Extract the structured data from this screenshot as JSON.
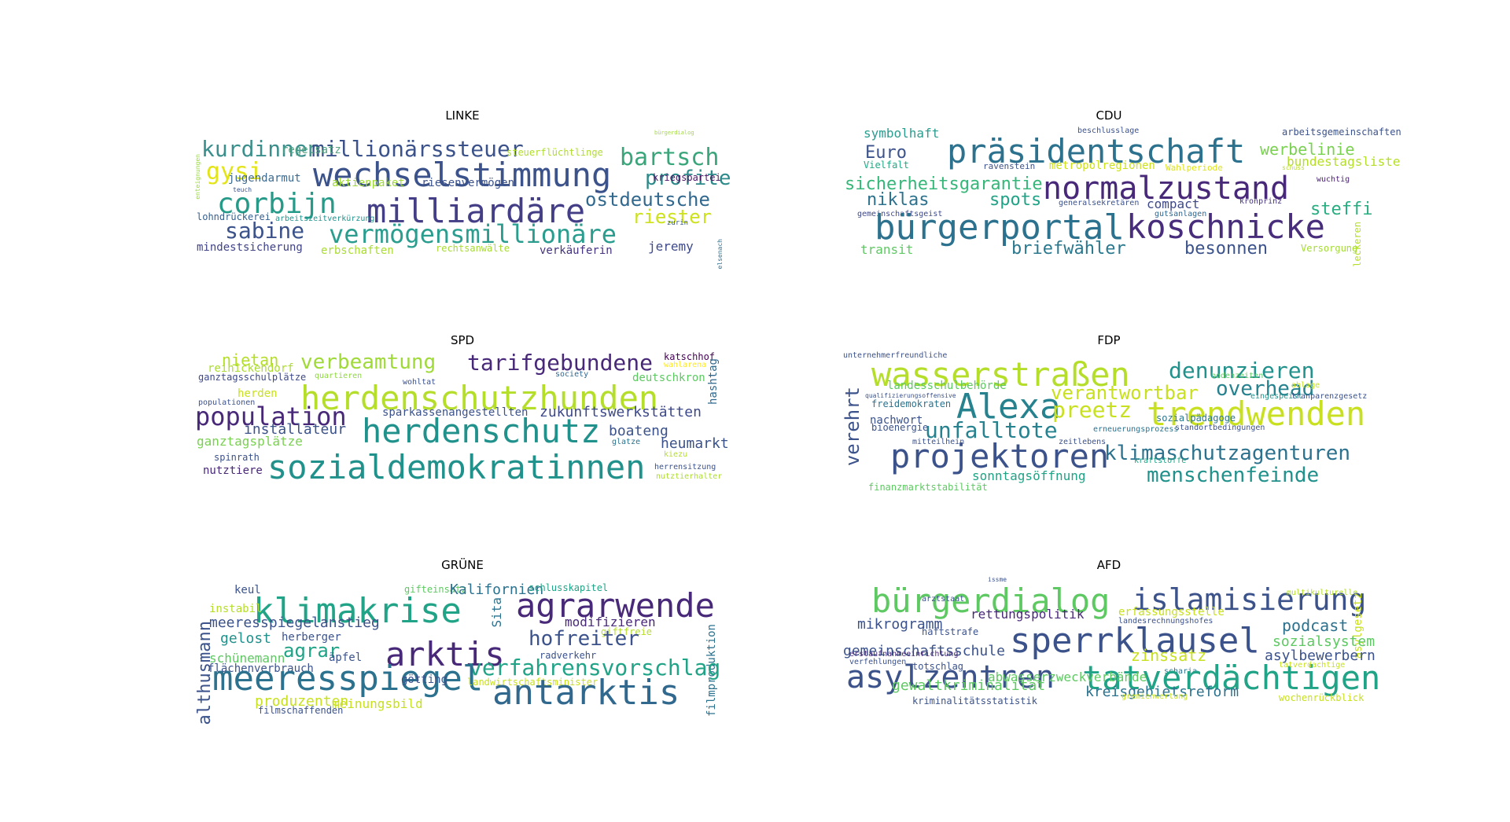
{
  "panels": [
    {
      "title": "LINKE",
      "words": [
        {
          "t": "kurdinnen",
          "c": "#3a8f8c"
        },
        {
          "t": "millionärssteuer",
          "c": "#3b528b"
        },
        {
          "t": "wechselstimmung",
          "c": "#3b528b"
        },
        {
          "t": "gysi",
          "c": "#e3e418"
        },
        {
          "t": "bartsch",
          "c": "#3aa57a"
        },
        {
          "t": "profite",
          "c": "#2c8b8a"
        },
        {
          "t": "corbijn",
          "c": "#269a88"
        },
        {
          "t": "milliardäre",
          "c": "#433e85"
        },
        {
          "t": "ostdeutsche",
          "c": "#31688e"
        },
        {
          "t": "riester",
          "c": "#cde11d"
        },
        {
          "t": "sabine",
          "c": "#3b528b"
        },
        {
          "t": "vermögensmillionäre",
          "c": "#2a9d8f"
        },
        {
          "t": "jeremy",
          "c": "#3e4a89"
        },
        {
          "t": "regelsatz",
          "c": "#50a383"
        },
        {
          "t": "steuerflüchtlinge",
          "c": "#b0dd2f"
        },
        {
          "t": "jugendarmut",
          "c": "#3d6a8e"
        },
        {
          "t": "aktienpaket",
          "c": "#9fd938"
        },
        {
          "t": "riesenvermögen",
          "c": "#3b528b"
        },
        {
          "t": "kriegspartei",
          "c": "#471365"
        },
        {
          "t": "lohndrückerei",
          "c": "#355f8d"
        },
        {
          "t": "arbeitszeitverkürzung",
          "c": "#21918c"
        },
        {
          "t": "mindestsicherung",
          "c": "#404387"
        },
        {
          "t": "erbschaften",
          "c": "#aadc32"
        },
        {
          "t": "rechtsanwälte",
          "c": "#a8db34"
        },
        {
          "t": "verkäuferin",
          "c": "#46337e"
        },
        {
          "t": "enteignungen",
          "c": "#9bd93c"
        },
        {
          "t": "bürgerdialog",
          "c": "#a0da39"
        },
        {
          "t": "teuch",
          "c": "#3b528b"
        },
        {
          "t": "zurin",
          "c": "#38598c"
        },
        {
          "t": "elsenach",
          "c": "#2e6f8e"
        }
      ]
    },
    {
      "title": "CDU",
      "words": [
        {
          "t": "symbolhaft",
          "c": "#2a9d8f"
        },
        {
          "t": "beschlusslage",
          "c": "#3b528b"
        },
        {
          "t": "arbeitsgemeinschaften",
          "c": "#3b528b"
        },
        {
          "t": "präsidentschaft",
          "c": "#2c728e"
        },
        {
          "t": "werbelinie",
          "c": "#7ad151"
        },
        {
          "t": "Euro",
          "c": "#3b528b"
        },
        {
          "t": "bundestagsliste",
          "c": "#b5de2b"
        },
        {
          "t": "Vielfalt",
          "c": "#22a884"
        },
        {
          "t": "ravenstein",
          "c": "#3b528b"
        },
        {
          "t": "metropolregionen",
          "c": "#cde11d"
        },
        {
          "t": "Wahlperiode",
          "c": "#dde318"
        },
        {
          "t": "schuss",
          "c": "#b8de29"
        },
        {
          "t": "sicherheitsgarantie",
          "c": "#35b779"
        },
        {
          "t": "normalzustand",
          "c": "#482878"
        },
        {
          "t": "wuchtig",
          "c": "#481f70"
        },
        {
          "t": "niklas",
          "c": "#2c728e"
        },
        {
          "t": "spots",
          "c": "#20a386"
        },
        {
          "t": "generalsekretären",
          "c": "#3b528b"
        },
        {
          "t": "compact",
          "c": "#3e4989"
        },
        {
          "t": "kronprinz",
          "c": "#46327e"
        },
        {
          "t": "steffi",
          "c": "#26ad81"
        },
        {
          "t": "gemeinschaftsgeist",
          "c": "#3e4989"
        },
        {
          "t": "gutsanlagen",
          "c": "#31688e"
        },
        {
          "t": "bürgerportal",
          "c": "#2c728e"
        },
        {
          "t": "koschnicke",
          "c": "#472d7b"
        },
        {
          "t": "transit",
          "c": "#5ec962"
        },
        {
          "t": "briefwähler",
          "c": "#2a788e"
        },
        {
          "t": "besonnen",
          "c": "#3b528b"
        },
        {
          "t": "Versorgung",
          "c": "#a5db36"
        },
        {
          "t": "leckeren",
          "c": "#b5de2b"
        }
      ]
    },
    {
      "title": "SPD",
      "words": [
        {
          "t": "nietan",
          "c": "#b5de2b"
        },
        {
          "t": "verbeamtung",
          "c": "#a0da39"
        },
        {
          "t": "tarifgebundene",
          "c": "#482878"
        },
        {
          "t": "katschhof",
          "c": "#440154"
        },
        {
          "t": "reinickendorf",
          "c": "#addc30"
        },
        {
          "t": "ganztagsschulplätze",
          "c": "#3e4989"
        },
        {
          "t": "quartieren",
          "c": "#90d743"
        },
        {
          "t": "society",
          "c": "#31688e"
        },
        {
          "t": "wahlarena",
          "c": "#fde725"
        },
        {
          "t": "deutschkron",
          "c": "#5ec962"
        },
        {
          "t": "hashtag",
          "c": "#31688e"
        },
        {
          "t": "wohltat",
          "c": "#3b528b"
        },
        {
          "t": "herden",
          "c": "#c8e020"
        },
        {
          "t": "herdenschutzhunden",
          "c": "#b5de2b"
        },
        {
          "t": "populationen",
          "c": "#3b528b"
        },
        {
          "t": "population",
          "c": "#482878"
        },
        {
          "t": "sparkassenangestellten",
          "c": "#3b528b"
        },
        {
          "t": "zukunftswerkstätten",
          "c": "#3e4989"
        },
        {
          "t": "installateur",
          "c": "#3b528b"
        },
        {
          "t": "herdenschutz",
          "c": "#21918c"
        },
        {
          "t": "boateng",
          "c": "#3b528b"
        },
        {
          "t": "ganztagsplätze",
          "c": "#7ad151"
        },
        {
          "t": "glatze",
          "c": "#2c728e"
        },
        {
          "t": "heumarkt",
          "c": "#3b528b"
        },
        {
          "t": "spinrath",
          "c": "#3b528b"
        },
        {
          "t": "sozialdemokratinnen",
          "c": "#21918c"
        },
        {
          "t": "kiezu",
          "c": "#b5de2b"
        },
        {
          "t": "herrensitzung",
          "c": "#3b528b"
        },
        {
          "t": "nutztiere",
          "c": "#482878"
        },
        {
          "t": "nutztierhalter",
          "c": "#addc30"
        }
      ]
    },
    {
      "title": "FDP",
      "words": [
        {
          "t": "unternehmerfreundliche",
          "c": "#3b528b"
        },
        {
          "t": "wasserstraßen",
          "c": "#b5de2b"
        },
        {
          "t": "denunzieren",
          "c": "#21918c"
        },
        {
          "t": "bodenzeiten",
          "c": "#5ec962"
        },
        {
          "t": "landesschulbehörde",
          "c": "#5ec962"
        },
        {
          "t": "verantwortbar",
          "c": "#c8e020"
        },
        {
          "t": "overhead",
          "c": "#26828e"
        },
        {
          "t": "ablage",
          "c": "#c8e020"
        },
        {
          "t": "qualifizierungsoffensive",
          "c": "#3b528b"
        },
        {
          "t": "freidemokraten",
          "c": "#2c728e"
        },
        {
          "t": "Alexa",
          "c": "#26828e"
        },
        {
          "t": "preetz",
          "c": "#c8e020"
        },
        {
          "t": "eingespeist",
          "c": "#21918c"
        },
        {
          "t": "tranparenzgesetz",
          "c": "#3b528b"
        },
        {
          "t": "verehrt",
          "c": "#3b528b"
        },
        {
          "t": "trendwenden",
          "c": "#c8e020"
        },
        {
          "t": "sozialpädagoge",
          "c": "#2a788e"
        },
        {
          "t": "nachwort",
          "c": "#3b528b"
        },
        {
          "t": "bioenergie",
          "c": "#3b528b"
        },
        {
          "t": "unfalltote",
          "c": "#26828e"
        },
        {
          "t": "erneuerungsprozess",
          "c": "#2c728e"
        },
        {
          "t": "standortbedingungen",
          "c": "#3b528b"
        },
        {
          "t": "mitteilhein",
          "c": "#3b528b"
        },
        {
          "t": "zeitlebens",
          "c": "#3b528b"
        },
        {
          "t": "projektoren",
          "c": "#3b528b"
        },
        {
          "t": "klimaschutzagenturen",
          "c": "#2c728e"
        },
        {
          "t": "kraftstoffe",
          "c": "#20a386"
        },
        {
          "t": "sonntagsöffnung",
          "c": "#20a386"
        },
        {
          "t": "menschenfeinde",
          "c": "#21918c"
        },
        {
          "t": "finanzmarktstabilität",
          "c": "#5ec962"
        }
      ]
    },
    {
      "title": "GRÜNE",
      "words": [
        {
          "t": "keul",
          "c": "#3b528b"
        },
        {
          "t": "gifteinsatz",
          "c": "#5ec962"
        },
        {
          "t": "Kalifornien",
          "c": "#2c728e"
        },
        {
          "t": "schlusskapitel",
          "c": "#20a386"
        },
        {
          "t": "klimakrise",
          "c": "#20a386"
        },
        {
          "t": "Sita",
          "c": "#2c728e"
        },
        {
          "t": "agrarwende",
          "c": "#482878"
        },
        {
          "t": "instabil",
          "c": "#b5de2b"
        },
        {
          "t": "meeresspiegelanstieg",
          "c": "#3b528b"
        },
        {
          "t": "modifizieren",
          "c": "#482878"
        },
        {
          "t": "giftfreie",
          "c": "#b5de2b"
        },
        {
          "t": "gelost",
          "c": "#21918c"
        },
        {
          "t": "herberger",
          "c": "#3b528b"
        },
        {
          "t": "hofreiter",
          "c": "#3b528b"
        },
        {
          "t": "filmproduktion",
          "c": "#2c728e"
        },
        {
          "t": "agrar",
          "c": "#20a386"
        },
        {
          "t": "arktis",
          "c": "#482878"
        },
        {
          "t": "schünemann",
          "c": "#5ec962"
        },
        {
          "t": "äpfel",
          "c": "#3b528b"
        },
        {
          "t": "radverkehr",
          "c": "#3b528b"
        },
        {
          "t": "althusmann",
          "c": "#3b528b"
        },
        {
          "t": "flächenverbrauch",
          "c": "#3b528b"
        },
        {
          "t": "verfahrensvorschlag",
          "c": "#20a386"
        },
        {
          "t": "meeresspiegel",
          "c": "#2c728e"
        },
        {
          "t": "landwirtschaftsminister",
          "c": "#c8e020"
        },
        {
          "t": "antarktis",
          "c": "#31688e"
        },
        {
          "t": "produzenten",
          "c": "#c8e020"
        },
        {
          "t": "meinungsbild",
          "c": "#c8e020"
        },
        {
          "t": "götting",
          "c": "#3b528b"
        },
        {
          "t": "filmschaffenden",
          "c": "#3b528b"
        }
      ]
    },
    {
      "title": "AFD",
      "words": [
        {
          "t": "issme",
          "c": "#3b528b"
        },
        {
          "t": "bürgerdialog",
          "c": "#5ec962"
        },
        {
          "t": "islamisierung",
          "c": "#3b528b"
        },
        {
          "t": "multikulturelle",
          "c": "#b5de2b"
        },
        {
          "t": "arztstaat",
          "c": "#3b528b"
        },
        {
          "t": "erfassungsstelle",
          "c": "#c8e020"
        },
        {
          "t": "asylgesetz",
          "c": "#c8e020"
        },
        {
          "t": "rettungspolitik",
          "c": "#482878"
        },
        {
          "t": "landesrechnungshofes",
          "c": "#3b528b"
        },
        {
          "t": "mikrogramm",
          "c": "#3b528b"
        },
        {
          "t": "podcast",
          "c": "#2c728e"
        },
        {
          "t": "haftstrafe",
          "c": "#3b528b"
        },
        {
          "t": "sperrklausel",
          "c": "#3b528b"
        },
        {
          "t": "sozialsystem",
          "c": "#5ec962"
        },
        {
          "t": "gemeinschaftsschule",
          "c": "#3b528b"
        },
        {
          "t": "asylbewerbern",
          "c": "#3b528b"
        },
        {
          "t": "verfehlungen",
          "c": "#3b528b"
        },
        {
          "t": "erstaufnahmeeinrichtung",
          "c": "#482878"
        },
        {
          "t": "totschlag",
          "c": "#3b528b"
        },
        {
          "t": "zinssatz",
          "c": "#c8e020"
        },
        {
          "t": "asylzentren",
          "c": "#3b528b"
        },
        {
          "t": "scharia",
          "c": "#2c728e"
        },
        {
          "t": "tatverdächtigen",
          "c": "#20a386"
        },
        {
          "t": "abwasserzweckverbände",
          "c": "#5ec962"
        },
        {
          "t": "tatverdachtige",
          "c": "#c8e020"
        },
        {
          "t": "gewaltkriminalität",
          "c": "#5ec962"
        },
        {
          "t": "kreisgebietsreform",
          "c": "#2c728e"
        },
        {
          "t": "kriminalitätsstatistik",
          "c": "#3b528b"
        },
        {
          "t": "gremienwertung",
          "c": "#c8e020"
        },
        {
          "t": "wochenrückblick",
          "c": "#c8e020"
        }
      ]
    }
  ]
}
